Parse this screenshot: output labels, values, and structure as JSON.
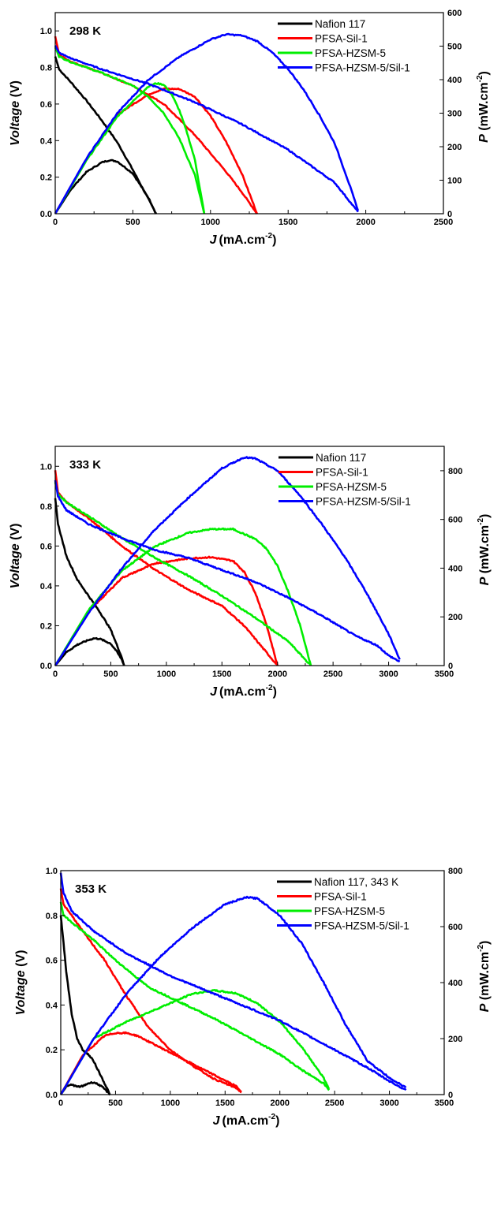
{
  "chart_data": [
    {
      "type": "line",
      "annotation": "298 K",
      "xlabel": "J",
      "xlabel_unit": "(mA.cm",
      "xlabel_unit_sup": "-2",
      "xlabel_unit_end": ")",
      "ylabel": "Voltage",
      "ylabel_unit": " (V)",
      "y2label": "P",
      "y2label_unit": " (mW.cm",
      "y2label_unit_sup": "-2",
      "y2label_unit_end": ")",
      "xlim": [
        0,
        2500
      ],
      "xticks": [
        "0",
        "500",
        "1000",
        "1500",
        "2000",
        "2500"
      ],
      "ylim": [
        0,
        1.1
      ],
      "yticks": [
        "0.0",
        "0.2",
        "0.4",
        "0.6",
        "0.8",
        "1.0"
      ],
      "y2lim": [
        0,
        600
      ],
      "y2ticks": [
        "0",
        "100",
        "200",
        "300",
        "400",
        "500",
        "600"
      ],
      "legend_position": "top-right",
      "series": [
        {
          "name": "Nafion 117",
          "color": "#000000",
          "polarization": {
            "x": [
              0,
              25,
              100,
              200,
              300,
              400,
              500,
              600,
              650
            ],
            "y": [
              0.86,
              0.79,
              0.72,
              0.62,
              0.51,
              0.39,
              0.24,
              0.08,
              0.0
            ]
          },
          "power": {
            "x": [
              0,
              100,
              200,
              300,
              350,
              400,
              500,
              600,
              650
            ],
            "y": [
              0,
              72,
              124,
              153,
              160,
              156,
              120,
              48,
              0
            ]
          }
        },
        {
          "name": "PFSA-Sil-1",
          "color": "#ff0000",
          "polarization": {
            "x": [
              0,
              25,
              100,
              300,
              500,
              700,
              900,
              1100,
              1200,
              1300
            ],
            "y": [
              0.97,
              0.87,
              0.83,
              0.77,
              0.7,
              0.6,
              0.43,
              0.23,
              0.12,
              0.0
            ]
          },
          "power": {
            "x": [
              0,
              200,
              400,
              600,
              700,
              800,
              900,
              1000,
              1100,
              1200,
              1300
            ],
            "y": [
              0,
              163,
              296,
              356,
              373,
              372,
              349,
              292,
              215,
              122,
              0
            ]
          }
        },
        {
          "name": "PFSA-HZSM-5",
          "color": "#00ee00",
          "polarization": {
            "x": [
              0,
              25,
              100,
              300,
              500,
              600,
              700,
              800,
              900,
              960
            ],
            "y": [
              0.91,
              0.86,
              0.83,
              0.77,
              0.7,
              0.64,
              0.55,
              0.41,
              0.21,
              0.0
            ]
          },
          "power": {
            "x": [
              0,
              200,
              400,
              600,
              650,
              700,
              750,
              800,
              850,
              900,
              960
            ],
            "y": [
              0,
              158,
              290,
              380,
              389,
              385,
              356,
              308,
              240,
              160,
              0
            ]
          }
        },
        {
          "name": "PFSA-HZSM-5/Sil-1",
          "color": "#0000ff",
          "polarization": {
            "x": [
              0,
              25,
              100,
              300,
              600,
              900,
              1200,
              1500,
              1800,
              1950
            ],
            "y": [
              0.92,
              0.88,
              0.85,
              0.79,
              0.71,
              0.61,
              0.49,
              0.35,
              0.17,
              0.01
            ]
          },
          "power": {
            "x": [
              0,
              200,
              400,
              600,
              800,
              1000,
              1100,
              1200,
              1300,
              1400,
              1500,
              1600,
              1700,
              1800,
              1900,
              1950
            ],
            "y": [
              0,
              164,
              300,
              400,
              468,
              520,
              535,
              532,
              515,
              480,
              432,
              370,
              295,
              210,
              80,
              10
            ]
          }
        }
      ]
    },
    {
      "type": "line",
      "annotation": "333 K",
      "xlabel": "J",
      "xlabel_unit": "(mA.cm",
      "xlabel_unit_sup": "-2",
      "xlabel_unit_end": ")",
      "ylabel": "Voltage",
      "ylabel_unit": " (V)",
      "y2label": "P",
      "y2label_unit": " (mW.cm",
      "y2label_unit_sup": "-2",
      "y2label_unit_end": ")",
      "xlim": [
        0,
        3500
      ],
      "xticks": [
        "0",
        "500",
        "1000",
        "1500",
        "2000",
        "2500",
        "3000",
        "3500"
      ],
      "ylim": [
        0,
        1.1
      ],
      "yticks": [
        "0.0",
        "0.2",
        "0.4",
        "0.6",
        "0.8",
        "1.0"
      ],
      "y2lim": [
        0,
        900
      ],
      "y2ticks": [
        "0",
        "200",
        "400",
        "600",
        "800"
      ],
      "legend_position": "top-right",
      "series": [
        {
          "name": "Nafion 117",
          "color": "#000000",
          "polarization": {
            "x": [
              0,
              25,
              100,
              200,
              300,
              400,
              500,
              600,
              620
            ],
            "y": [
              0.84,
              0.71,
              0.55,
              0.43,
              0.35,
              0.27,
              0.18,
              0.04,
              0.0
            ]
          },
          "power": {
            "x": [
              0,
              100,
              200,
              300,
              350,
              400,
              450,
              500,
              550,
              600,
              620
            ],
            "y": [
              0,
              55,
              86,
              105,
              112,
              110,
              100,
              90,
              60,
              24,
              0
            ]
          }
        },
        {
          "name": "PFSA-Sil-1",
          "color": "#ff0000",
          "polarization": {
            "x": [
              0,
              25,
              100,
              300,
              600,
              900,
              1200,
              1500,
              1700,
              1850,
              2000
            ],
            "y": [
              0.98,
              0.87,
              0.82,
              0.74,
              0.6,
              0.48,
              0.38,
              0.3,
              0.2,
              0.1,
              0.0
            ]
          },
          "power": {
            "x": [
              0,
              300,
              600,
              900,
              1200,
              1400,
              1600,
              1700,
              1800,
              1900,
              2000
            ],
            "y": [
              0,
              222,
              360,
              420,
              440,
              445,
              430,
              385,
              300,
              170,
              0
            ]
          }
        },
        {
          "name": "PFSA-HZSM-5",
          "color": "#00ee00",
          "polarization": {
            "x": [
              0,
              25,
              100,
              300,
              600,
              900,
              1200,
              1500,
              1800,
              2100,
              2300
            ],
            "y": [
              0.92,
              0.86,
              0.82,
              0.75,
              0.64,
              0.54,
              0.45,
              0.35,
              0.24,
              0.12,
              0.0
            ]
          },
          "power": {
            "x": [
              0,
              300,
              600,
              900,
              1200,
              1400,
              1600,
              1800,
              1900,
              2000,
              2100,
              2200,
              2300
            ],
            "y": [
              0,
              228,
              390,
              490,
              545,
              560,
              560,
              520,
              480,
              410,
              300,
              170,
              0
            ]
          }
        },
        {
          "name": "PFSA-HZSM-5/Sil-1",
          "color": "#0000ff",
          "polarization": {
            "x": [
              0,
              25,
              100,
              300,
              600,
              900,
              1200,
              1500,
              1800,
              2100,
              2400,
              2700,
              2900,
              3000,
              3100
            ],
            "y": [
              0.93,
              0.85,
              0.78,
              0.71,
              0.64,
              0.58,
              0.54,
              0.48,
              0.42,
              0.34,
              0.25,
              0.15,
              0.1,
              0.05,
              0.02
            ]
          },
          "power": {
            "x": [
              0,
              300,
              600,
              900,
              1200,
              1500,
              1700,
              1800,
              2000,
              2200,
              2400,
              2600,
              2800,
              3000,
              3100
            ],
            "y": [
              0,
              215,
              400,
              560,
              690,
              810,
              855,
              850,
              800,
              700,
              580,
              450,
              300,
              130,
              25
            ]
          }
        }
      ]
    },
    {
      "type": "line",
      "annotation": "353 K",
      "xlabel": "J",
      "xlabel_unit": "(mA.cm",
      "xlabel_unit_sup": "-2",
      "xlabel_unit_end": ")",
      "ylabel": "Voltage",
      "ylabel_unit": " (V)",
      "y2label": "P",
      "y2label_unit": " (mW.cm",
      "y2label_unit_sup": "-2",
      "y2label_unit_end": ")",
      "xlim": [
        0,
        3500
      ],
      "xticks": [
        "0",
        "500",
        "1000",
        "1500",
        "2000",
        "2500",
        "3000",
        "3500"
      ],
      "ylim": [
        0,
        1.0
      ],
      "yticks": [
        "0.0",
        "0.2",
        "0.4",
        "0.6",
        "0.8",
        "1.0"
      ],
      "y2lim": [
        0,
        800
      ],
      "y2ticks": [
        "0",
        "200",
        "400",
        "600",
        "800"
      ],
      "legend_position": "top-right",
      "series": [
        {
          "name": "Nafion 117, 343 K",
          "color": "#000000",
          "polarization": {
            "x": [
              0,
              25,
              50,
              100,
              150,
              200,
              250,
              300,
              350,
              400,
              450
            ],
            "y": [
              0.8,
              0.68,
              0.55,
              0.36,
              0.25,
              0.2,
              0.18,
              0.15,
              0.1,
              0.05,
              0.0
            ]
          },
          "power": {
            "x": [
              0,
              50,
              100,
              150,
              200,
              250,
              300,
              350,
              400,
              450
            ],
            "y": [
              0,
              28,
              36,
              28,
              30,
              40,
              44,
              35,
              20,
              0
            ]
          }
        },
        {
          "name": "PFSA-Sil-1",
          "color": "#ff0000",
          "polarization": {
            "x": [
              0,
              25,
              100,
              200,
              400,
              600,
              800,
              1000,
              1200,
              1400,
              1600,
              1650
            ],
            "y": [
              0.92,
              0.85,
              0.8,
              0.73,
              0.6,
              0.44,
              0.3,
              0.2,
              0.13,
              0.07,
              0.03,
              0.01
            ]
          },
          "power": {
            "x": [
              0,
              200,
              400,
              500,
              600,
              700,
              800,
              1000,
              1200,
              1400,
              1600,
              1650
            ],
            "y": [
              0,
              140,
              210,
              220,
              220,
              210,
              190,
              150,
              110,
              70,
              30,
              10
            ]
          }
        },
        {
          "name": "PFSA-HZSM-5",
          "color": "#00ee00",
          "polarization": {
            "x": [
              0,
              25,
              100,
              300,
              500,
              800,
              1100,
              1400,
              1700,
              2000,
              2200,
              2400,
              2450
            ],
            "y": [
              0.86,
              0.8,
              0.77,
              0.69,
              0.6,
              0.48,
              0.41,
              0.34,
              0.26,
              0.18,
              0.11,
              0.05,
              0.02
            ]
          },
          "power": {
            "x": [
              0,
              300,
              600,
              900,
              1200,
              1400,
              1600,
              1800,
              2000,
              2200,
              2400,
              2450
            ],
            "y": [
              0,
              200,
              260,
              310,
              360,
              372,
              362,
              325,
              260,
              170,
              60,
              20
            ]
          }
        },
        {
          "name": "PFSA-HZSM-5/Sil-1",
          "color": "#0000ff",
          "polarization": {
            "x": [
              0,
              25,
              100,
              300,
              600,
              1000,
              1500,
              2000,
              2500,
              2800,
              3000,
              3150
            ],
            "y": [
              0.99,
              0.9,
              0.82,
              0.73,
              0.63,
              0.53,
              0.43,
              0.33,
              0.2,
              0.12,
              0.06,
              0.02
            ]
          },
          "power": {
            "x": [
              0,
              300,
              600,
              900,
              1200,
              1500,
              1700,
              1800,
              2000,
              2200,
              2400,
              2600,
              2800,
              3000,
              3150
            ],
            "y": [
              0,
              200,
              360,
              490,
              595,
              680,
              705,
              700,
              640,
              540,
              400,
              250,
              120,
              60,
              25
            ]
          }
        }
      ]
    }
  ]
}
